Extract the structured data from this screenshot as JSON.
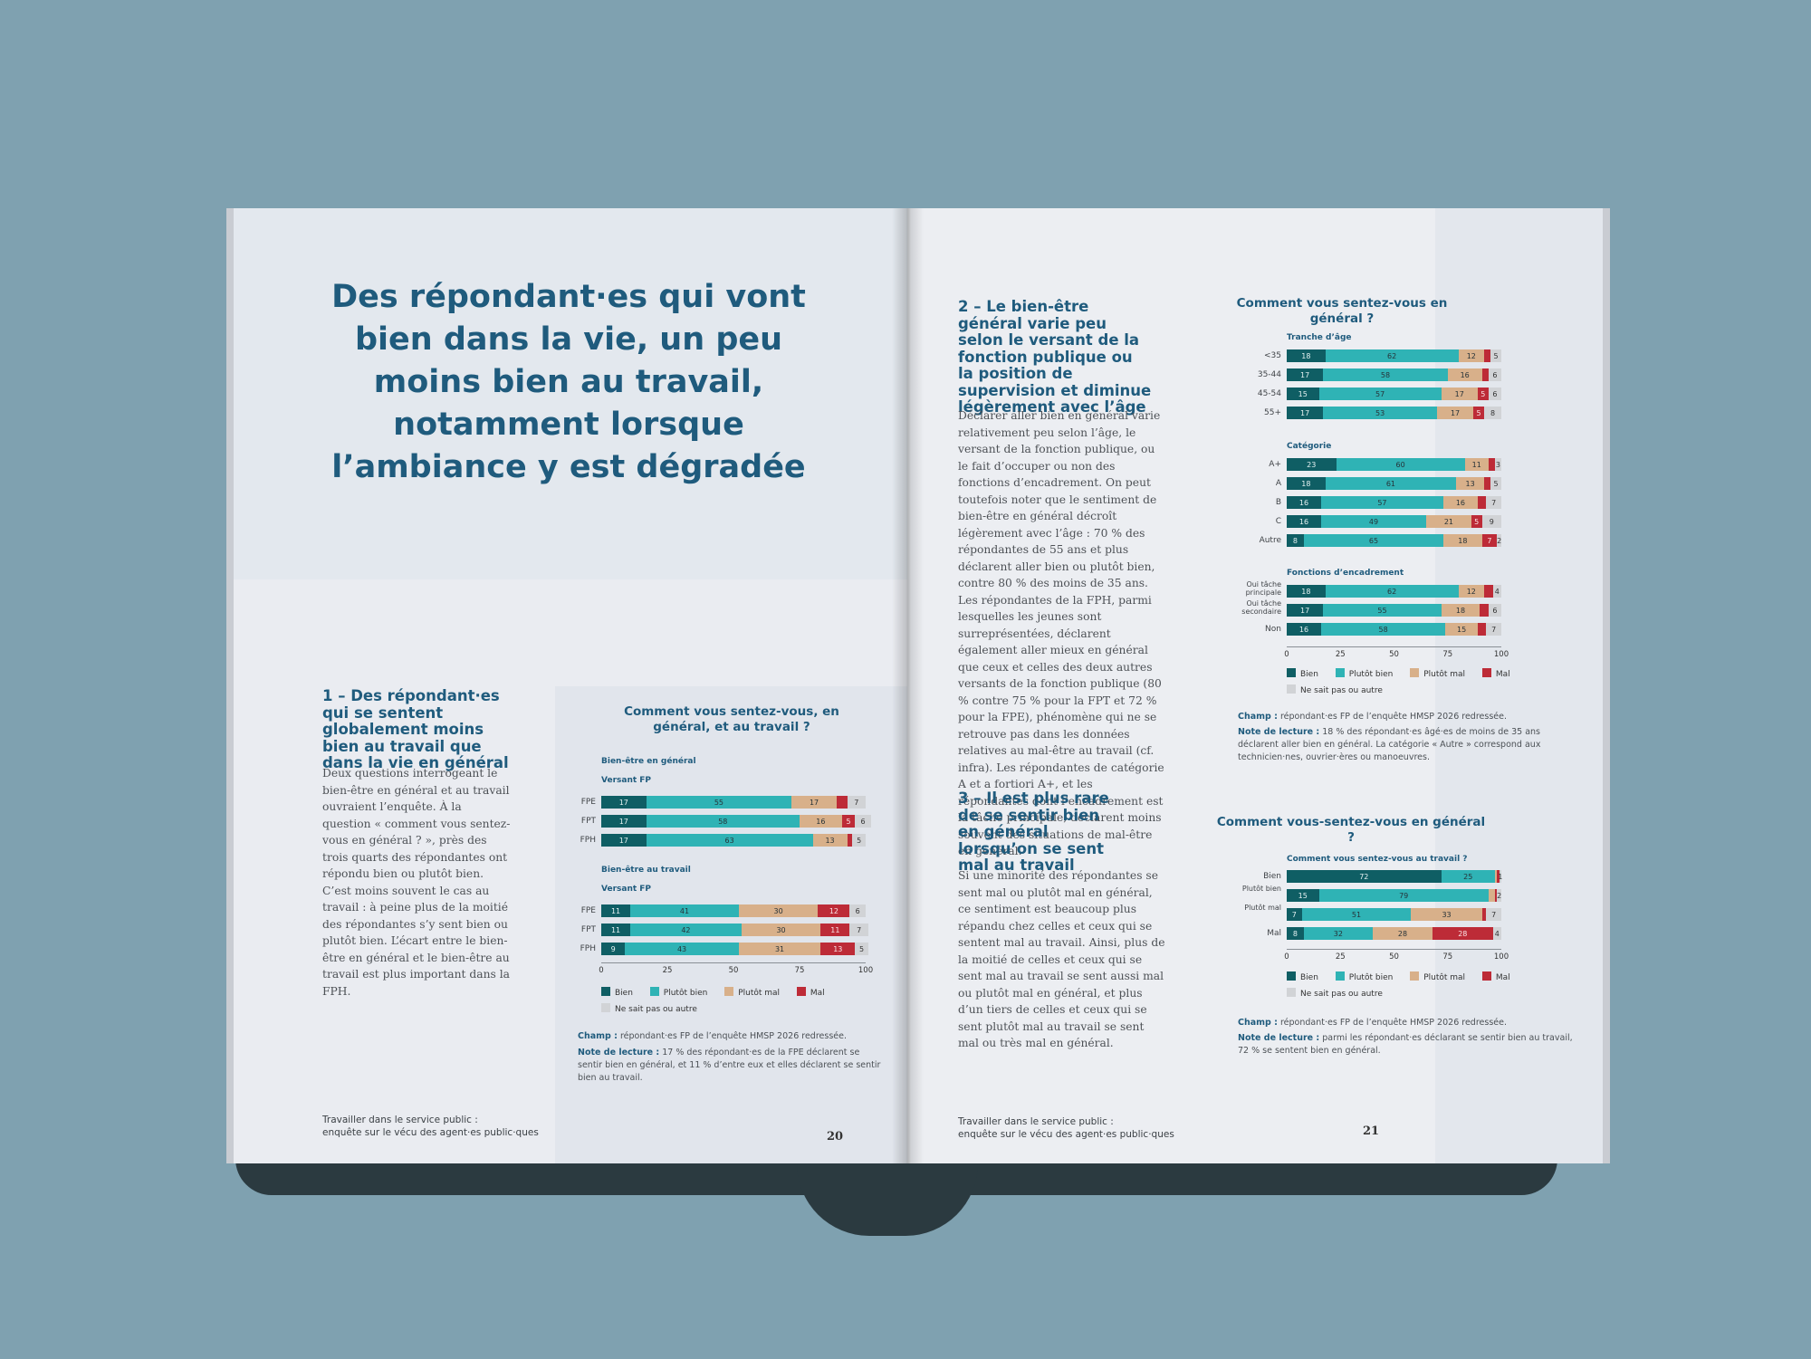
{
  "colors": {
    "bien": "#0f5e64",
    "plutot_bien": "#2fb3b5",
    "plutot_mal": "#d8b08a",
    "mal": "#bd2b37",
    "ns": "#d1d3d6",
    "title": "#1f5b7d"
  },
  "left": {
    "title": "Des répondant·es qui vont bien dans la vie, un peu moins bien au travail, notamment lorsque l’ambiance y est dégradée",
    "section1_heading": "1 – Des répondant·es qui se sentent globalement moins bien au travail que dans la vie en général",
    "section1_body": "Deux questions interrogeant le bien-être en général et au travail ouvraient l’enquête. À la question « comment vous sentez-vous en général ? », près des trois quarts des répondantes ont répondu bien ou plutôt bien. C’est moins souvent le cas au travail : à peine plus de la moitié des répondantes s’y sent bien ou plutôt bien. L’écart entre le bien-être en général et le bien-être au travail est plus important dans la FPH.",
    "footer_line1": "Travailler dans le service public :",
    "footer_line2": "enquête sur le vécu des agent·es public·ques",
    "page_number": "20",
    "chart": {
      "title": "Comment vous sentez-vous, en général, et au travail ?",
      "group1": "Bien-être en général",
      "group1_sub": "Versant FP",
      "group2": "Bien-être au travail",
      "group2_sub": "Versant FP",
      "champ_label": "Champ :",
      "champ": "répondant·es FP de l’enquête HMSP 2026 redressée.",
      "note_label": "Note de lecture :",
      "note": "17 % des répondant·es de la FPE déclarent se sentir bien en général, et 11 % d’entre eux et elles déclarent se sentir bien au travail."
    }
  },
  "right": {
    "section2_heading": "2 – Le bien-être général varie peu selon le versant de la fonction publique ou la position de supervision et diminue légèrement avec l’âge",
    "section2_body": "Déclarer aller bien en général varie relativement peu selon l’âge, le versant de la fonction publique, ou le fait d’occuper ou non des fonctions d’encadrement. On peut toutefois noter que le sentiment de bien-être en général décroît légèrement avec l’âge : 70 % des répondantes de 55 ans et plus déclarent aller bien ou plutôt bien, contre 80 % des moins de 35 ans. Les répondantes de la FPH, parmi lesquelles les jeunes sont surreprésentées, déclarent également aller mieux en général que ceux et celles des deux autres versants de la fonction publique (80 % contre 75 % pour la FPT et 72 % pour la FPE), phénomène qui ne se retrouve pas dans les données relatives au mal-être au travail (cf. infra). Les répondantes de catégorie A et a fortiori A+, et les répondantes dont l’encadrement est la tâche principale, déclarent moins souvent des situations de mal-être en général.",
    "section3_heading": "3 – Il est plus rare de se sentir bien en général lorsqu’on se sent mal au travail",
    "section3_body": "Si une minorité des répondantes se sent mal ou plutôt mal en général, ce sentiment est beaucoup plus répandu chez celles et ceux qui se sentent mal au travail. Ainsi, plus de la moitié de celles et ceux qui se sent mal au travail se sent aussi mal ou plutôt mal en général, et plus d’un tiers de celles et ceux qui se sent plutôt mal au travail se sent mal ou très mal en général.",
    "footer_line1": "Travailler dans le service public :",
    "footer_line2": "enquête sur le vécu des agent·es public·ques",
    "page_number": "21",
    "chart1": {
      "title": "Comment vous sentez-vous en général ?",
      "g1": "Tranche d’âge",
      "g2": "Catégorie",
      "g3": "Fonctions d’encadrement",
      "champ_label": "Champ :",
      "champ": "répondant·es FP de l’enquête HMSP 2026 redressée.",
      "note_label": "Note de lecture :",
      "note": "18 % des répondant·es âgé·es de moins de 35 ans déclarent aller bien en général. La catégorie « Autre » correspond aux technicien·nes, ouvrier·ères ou manoeuvres."
    },
    "chart2": {
      "title": "Comment vous-sentez-vous en général ?",
      "sub": "Comment vous sentez-vous au travail ?",
      "champ_label": "Champ :",
      "champ": "répondant·es FP de l’enquête HMSP 2026 redressée.",
      "note_label": "Note de lecture :",
      "note": "parmi les répondant·es déclarant se sentir bien au travail, 72 % se sentent bien en général."
    }
  },
  "legend": {
    "bien": "Bien",
    "plutot_bien": "Plutôt bien",
    "plutot_mal": "Plutôt mal",
    "mal": "Mal",
    "ns": "Ne sait pas ou autre"
  },
  "axis_ticks": [
    "0",
    "25",
    "50",
    "75",
    "100"
  ],
  "chart_data": [
    {
      "type": "bar",
      "stacked": true,
      "orientation": "horizontal",
      "title": "Comment vous sentez-vous, en général, et au travail ?",
      "xlim": [
        0,
        100
      ],
      "series_names": [
        "Bien",
        "Plutôt bien",
        "Plutôt mal",
        "Mal",
        "Ne sait pas ou autre"
      ],
      "groups": [
        {
          "name": "Bien-être en général",
          "rows": [
            {
              "label": "FPE",
              "values": [
                17,
                55,
                17,
                4,
                7
              ]
            },
            {
              "label": "FPT",
              "values": [
                17,
                58,
                16,
                5,
                6
              ]
            },
            {
              "label": "FPH",
              "values": [
                17,
                63,
                13,
                2,
                5
              ]
            }
          ]
        },
        {
          "name": "Bien-être au travail",
          "rows": [
            {
              "label": "FPE",
              "values": [
                11,
                41,
                30,
                12,
                6
              ]
            },
            {
              "label": "FPT",
              "values": [
                11,
                42,
                30,
                11,
                7
              ]
            },
            {
              "label": "FPH",
              "values": [
                9,
                43,
                31,
                13,
                5
              ]
            }
          ]
        }
      ]
    },
    {
      "type": "bar",
      "stacked": true,
      "orientation": "horizontal",
      "title": "Comment vous sentez-vous en général ?",
      "xlim": [
        0,
        100
      ],
      "series_names": [
        "Bien",
        "Plutôt bien",
        "Plutôt mal",
        "Mal",
        "Ne sait pas ou autre"
      ],
      "groups": [
        {
          "name": "Tranche d’âge",
          "rows": [
            {
              "label": "<35",
              "values": [
                18,
                62,
                12,
                3,
                5
              ]
            },
            {
              "label": "35-44",
              "values": [
                17,
                58,
                16,
                3,
                6
              ]
            },
            {
              "label": "45-54",
              "values": [
                15,
                57,
                17,
                5,
                6
              ]
            },
            {
              "label": "55+",
              "values": [
                17,
                53,
                17,
                5,
                8
              ]
            }
          ]
        },
        {
          "name": "Catégorie",
          "rows": [
            {
              "label": "A+",
              "values": [
                23,
                60,
                11,
                3,
                3
              ]
            },
            {
              "label": "A",
              "values": [
                18,
                61,
                13,
                3,
                5
              ]
            },
            {
              "label": "B",
              "values": [
                16,
                57,
                16,
                4,
                7
              ]
            },
            {
              "label": "C",
              "values": [
                16,
                49,
                21,
                5,
                9
              ]
            },
            {
              "label": "Autre",
              "values": [
                8,
                65,
                18,
                7,
                2
              ]
            }
          ]
        },
        {
          "name": "Fonctions d’encadrement",
          "rows": [
            {
              "label": "Oui tâche principale",
              "values": [
                18,
                62,
                12,
                4,
                4
              ]
            },
            {
              "label": "Oui tâche secondaire",
              "values": [
                17,
                55,
                18,
                4,
                6
              ]
            },
            {
              "label": "Non",
              "values": [
                16,
                58,
                15,
                4,
                7
              ]
            }
          ]
        }
      ]
    },
    {
      "type": "bar",
      "stacked": true,
      "orientation": "horizontal",
      "title": "Comment vous-sentez-vous en général ?",
      "xlabel": "",
      "ylabel": "Comment vous sentez-vous au travail ?",
      "xlim": [
        0,
        100
      ],
      "series_names": [
        "Bien",
        "Plutôt bien",
        "Plutôt mal",
        "Mal",
        "Ne sait pas ou autre"
      ],
      "groups": [
        {
          "name": "",
          "rows": [
            {
              "label": "Bien",
              "values": [
                72,
                25,
                1,
                1,
                1
              ]
            },
            {
              "label": "Plutôt bien",
              "values": [
                15,
                79,
                3,
                1,
                2
              ]
            },
            {
              "label": "Plutôt mal",
              "values": [
                7,
                51,
                33,
                2,
                7
              ]
            },
            {
              "label": "Mal",
              "values": [
                8,
                32,
                28,
                28,
                4
              ]
            }
          ]
        }
      ]
    }
  ]
}
